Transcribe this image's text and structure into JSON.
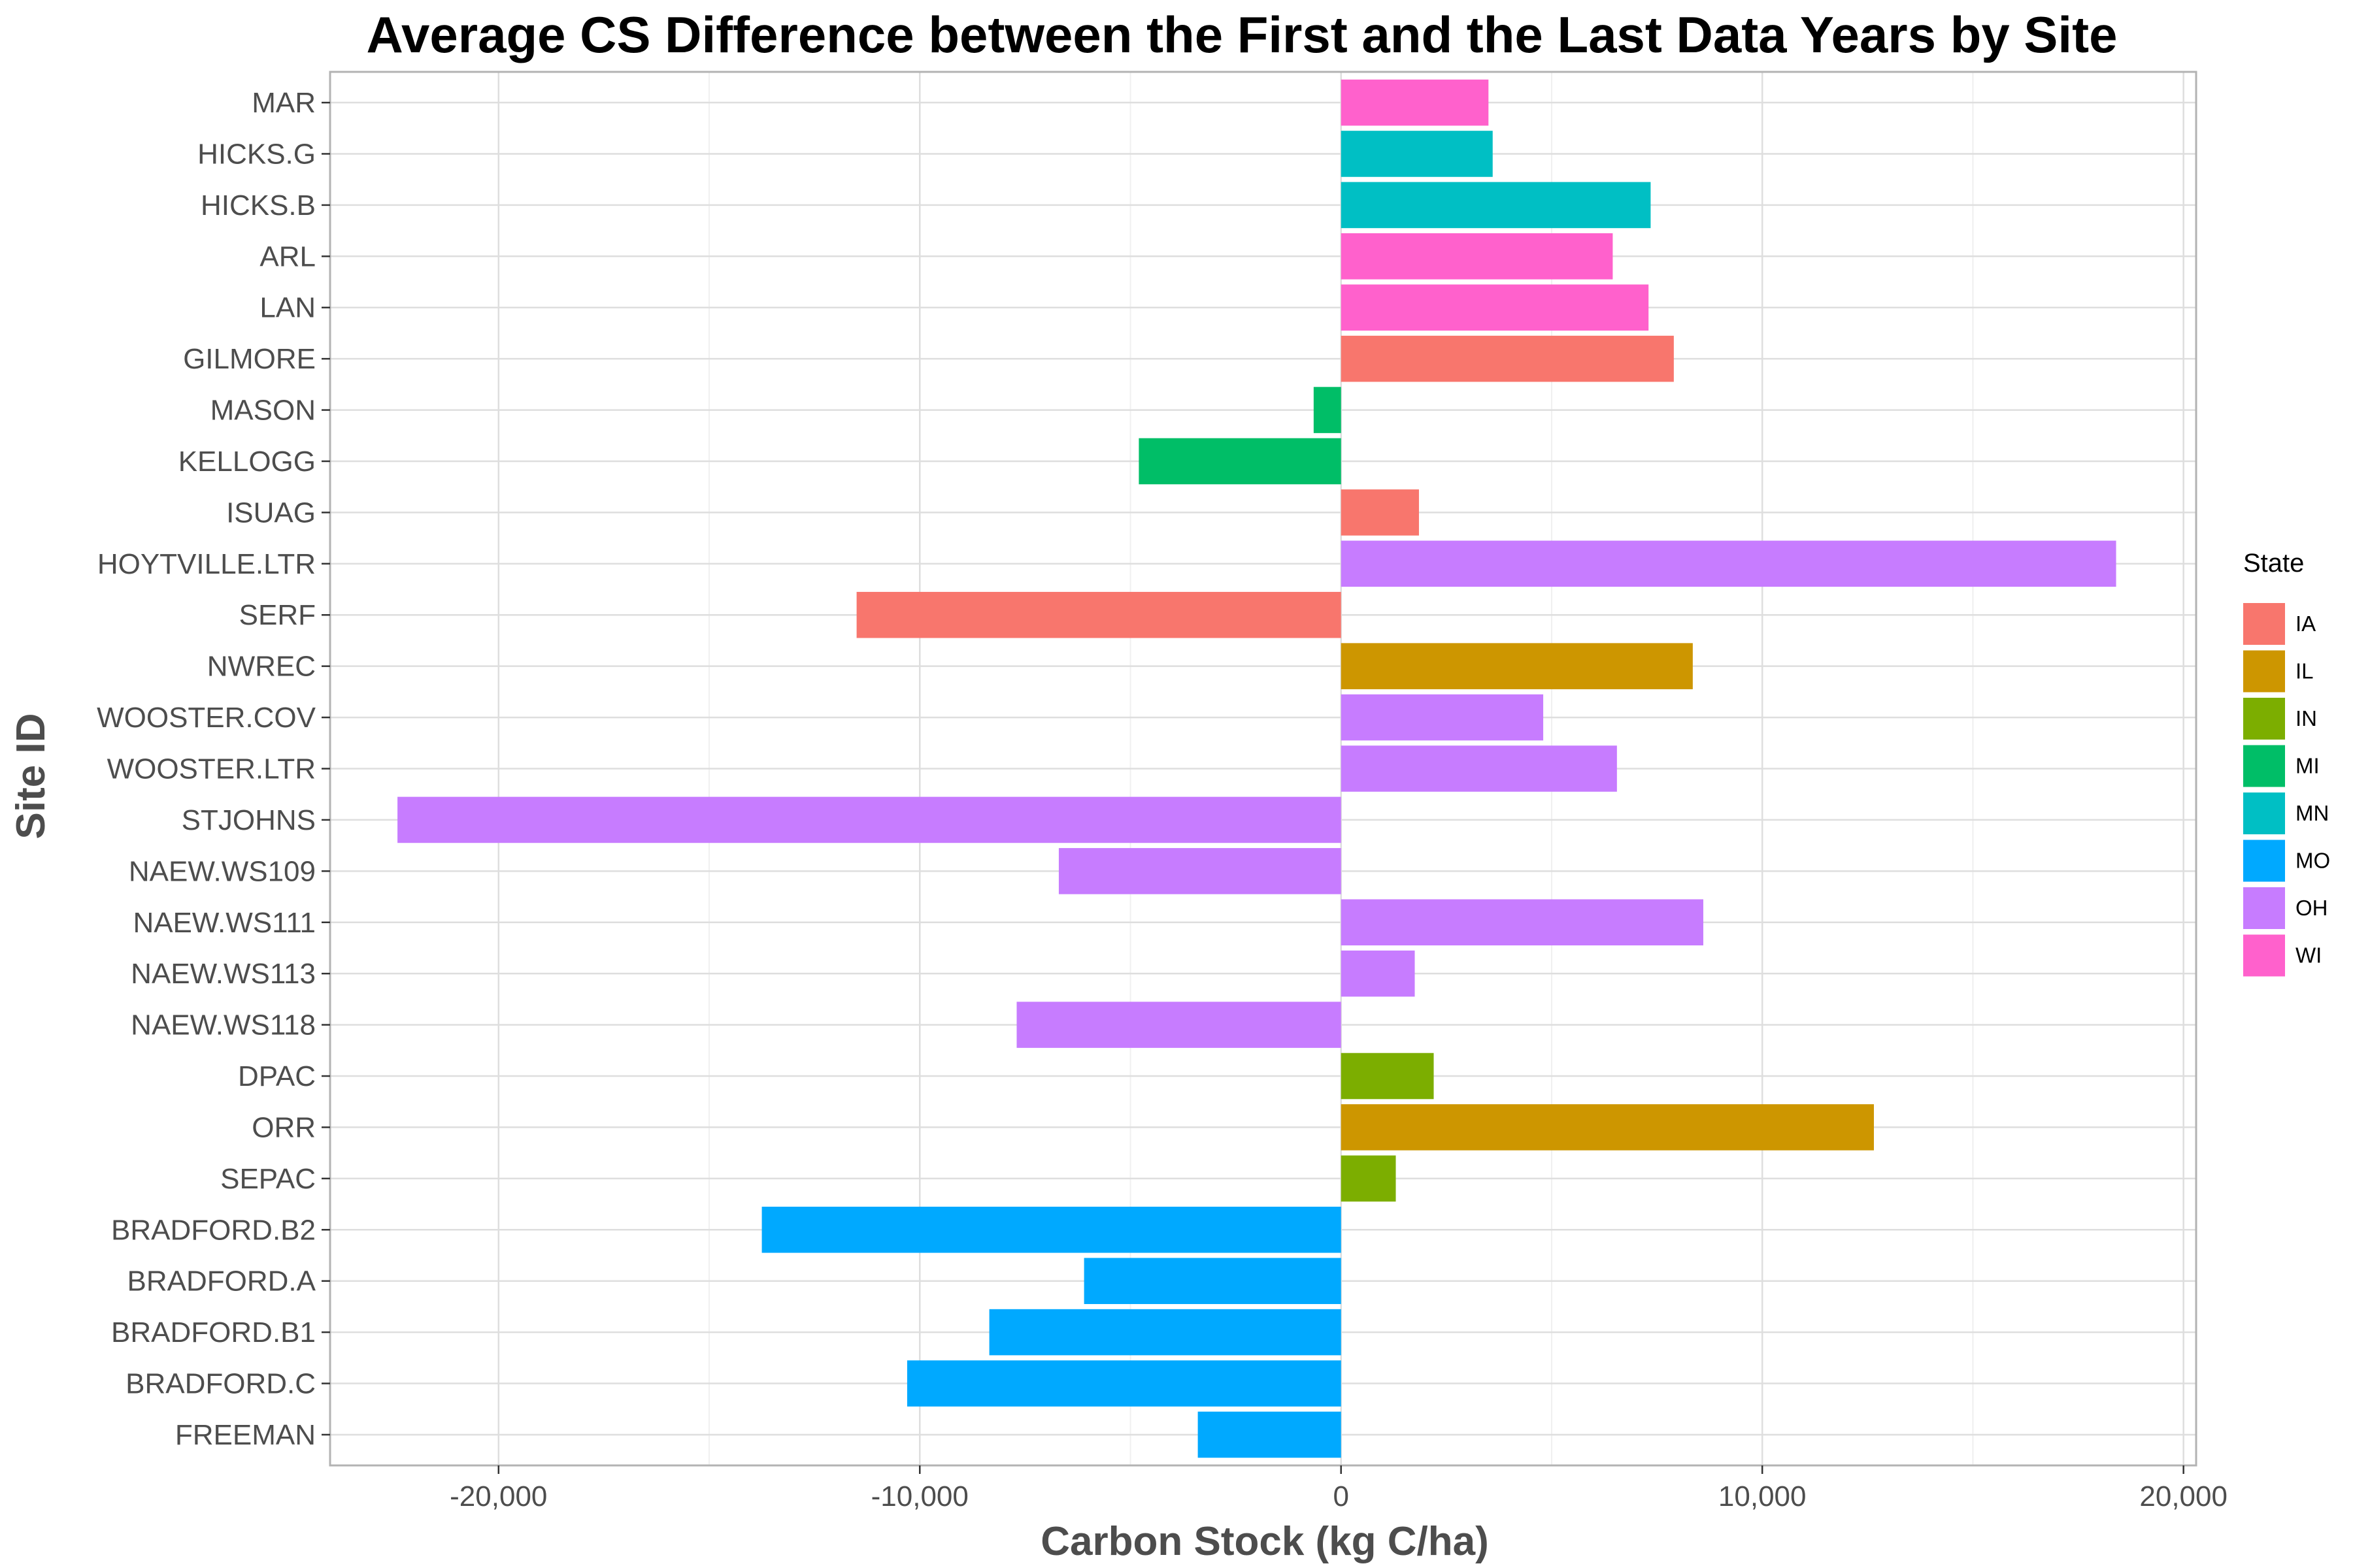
{
  "chart_data": {
    "type": "bar",
    "orientation": "horizontal",
    "title": "Average CS Difference between the First and the Last Data Years by Site",
    "xlabel": "Carbon Stock (kg C/ha)",
    "ylabel": "Site ID",
    "xlim": [
      -24000,
      20300
    ],
    "x_ticks": [
      -20000,
      -10000,
      0,
      10000,
      20000
    ],
    "x_tick_labels": [
      "-20,000",
      "-10,000",
      "0",
      "10,000",
      "20,000"
    ],
    "grid": true,
    "legend": {
      "title": "State",
      "position": "right",
      "entries": [
        {
          "label": "IA",
          "color": "#F8766D"
        },
        {
          "label": "IL",
          "color": "#CD9600"
        },
        {
          "label": "IN",
          "color": "#7CAE00"
        },
        {
          "label": "MI",
          "color": "#00BE67"
        },
        {
          "label": "MN",
          "color": "#00BFC4"
        },
        {
          "label": "MO",
          "color": "#00A9FF"
        },
        {
          "label": "OH",
          "color": "#C77CFF"
        },
        {
          "label": "WI",
          "color": "#FF61CC"
        }
      ]
    },
    "bars": [
      {
        "site": "MAR",
        "value": 3500,
        "state": "WI"
      },
      {
        "site": "HICKS.G",
        "value": 3600,
        "state": "MN"
      },
      {
        "site": "HICKS.B",
        "value": 7350,
        "state": "MN"
      },
      {
        "site": "ARL",
        "value": 6450,
        "state": "WI"
      },
      {
        "site": "LAN",
        "value": 7300,
        "state": "WI"
      },
      {
        "site": "GILMORE",
        "value": 7900,
        "state": "IA"
      },
      {
        "site": "MASON",
        "value": -650,
        "state": "MI"
      },
      {
        "site": "KELLOGG",
        "value": -4800,
        "state": "MI"
      },
      {
        "site": "ISUAG",
        "value": 1850,
        "state": "IA"
      },
      {
        "site": "HOYTVILLE.LTR",
        "value": 18400,
        "state": "OH"
      },
      {
        "site": "SERF",
        "value": -11500,
        "state": "IA"
      },
      {
        "site": "NWREC",
        "value": 8350,
        "state": "IL"
      },
      {
        "site": "WOOSTER.COV",
        "value": 4800,
        "state": "OH"
      },
      {
        "site": "WOOSTER.LTR",
        "value": 6550,
        "state": "OH"
      },
      {
        "site": "STJOHNS",
        "value": -22400,
        "state": "OH"
      },
      {
        "site": "NAEW.WS109",
        "value": -6700,
        "state": "OH"
      },
      {
        "site": "NAEW.WS111",
        "value": 8600,
        "state": "OH"
      },
      {
        "site": "NAEW.WS113",
        "value": 1750,
        "state": "OH"
      },
      {
        "site": "NAEW.WS118",
        "value": -7700,
        "state": "OH"
      },
      {
        "site": "DPAC",
        "value": 2200,
        "state": "IN"
      },
      {
        "site": "ORR",
        "value": 12650,
        "state": "IL"
      },
      {
        "site": "SEPAC",
        "value": 1300,
        "state": "IN"
      },
      {
        "site": "BRADFORD.B2",
        "value": -13750,
        "state": "MO"
      },
      {
        "site": "BRADFORD.A",
        "value": -6100,
        "state": "MO"
      },
      {
        "site": "BRADFORD.B1",
        "value": -8350,
        "state": "MO"
      },
      {
        "site": "BRADFORD.C",
        "value": -10300,
        "state": "MO"
      },
      {
        "site": "FREEMAN",
        "value": -3400,
        "state": "MO"
      }
    ]
  }
}
